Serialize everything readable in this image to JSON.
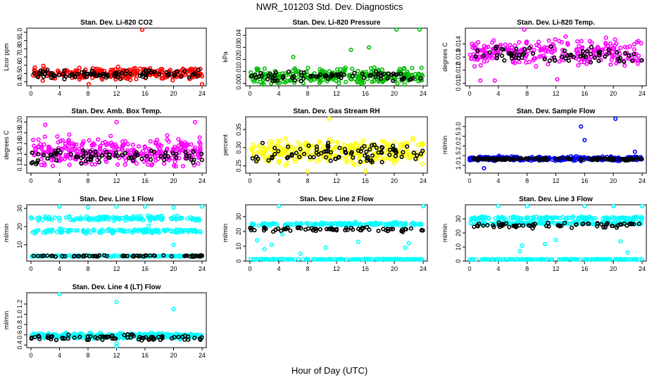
{
  "title": "NWR_101203  Std. Dev. Diagnostics",
  "xlabel": "Hour of Day (UTC)",
  "x_ticks": [
    "0",
    "4",
    "8",
    "12",
    "16",
    "20",
    "24"
  ],
  "chart_data": [
    {
      "type": "scatter",
      "title": "Stan. Dev. Li-820 CO2",
      "ylabel": "Licor ppm",
      "xlim": [
        0,
        24
      ],
      "ylim": [
        0.35,
        1.05
      ],
      "yticks": [
        "0.4",
        "0.5",
        "0.6",
        "0.7",
        "0.8",
        "0.9",
        "1.0"
      ],
      "ytick_values": [
        0.4,
        0.5,
        0.6,
        0.7,
        0.8,
        0.9,
        1.0
      ],
      "colors": {
        "main": "#ff0000",
        "black": "#000000"
      },
      "seed": 11,
      "main": {
        "n": 260,
        "base": 0.5,
        "spread": 0.05
      },
      "black": {
        "n": 90,
        "base": 0.49,
        "spread": 0.04
      },
      "outliers": [
        [
          15.6,
          1.03
        ],
        [
          24,
          0.37
        ],
        [
          8.1,
          0.37
        ]
      ]
    },
    {
      "type": "scatter",
      "title": "Stan. Dev. Li-820 Pressure",
      "ylabel": "kPa",
      "xlim": [
        0,
        24
      ],
      "ylim": [
        -0.002,
        0.046
      ],
      "yticks": [
        "0.00",
        "0.01",
        "0.02",
        "0.03",
        "0.04"
      ],
      "ytick_values": [
        0,
        0.01,
        0.02,
        0.03,
        0.04
      ],
      "colors": {
        "main": "#00bb00",
        "black": "#000000"
      },
      "seed": 23,
      "main": {
        "n": 260,
        "base": 0.006,
        "spread": 0.005
      },
      "black": {
        "n": 80,
        "base": 0.006,
        "spread": 0.003
      },
      "outliers": [
        [
          20.3,
          0.045
        ],
        [
          23.5,
          0.045
        ],
        [
          6,
          0.022
        ],
        [
          16.5,
          0.03
        ],
        [
          14,
          0.028
        ]
      ]
    },
    {
      "type": "scatter",
      "title": "Stan. Dev. Li-820 Temp.",
      "ylabel": "degrees C",
      "xlim": [
        0,
        24
      ],
      "ylim": [
        0.0108,
        0.0152
      ],
      "yticks": [
        "0.011",
        "0.012",
        "0.013",
        "0.014"
      ],
      "ytick_values": [
        0.011,
        0.012,
        0.013,
        0.014
      ],
      "colors": {
        "main": "#ff00ff",
        "black": "#000000"
      },
      "seed": 37,
      "main": {
        "n": 260,
        "base": 0.0133,
        "spread": 0.0007
      },
      "black": {
        "n": 70,
        "base": 0.0132,
        "spread": 0.0005
      },
      "outliers": [
        [
          1.5,
          0.0112
        ],
        [
          3.5,
          0.0112
        ],
        [
          7.6,
          0.0151
        ],
        [
          12.2,
          0.0113
        ]
      ]
    },
    {
      "type": "scatter",
      "title": "Stan. Dev. Amb. Box Temp.",
      "ylabel": "degrees C",
      "xlim": [
        0,
        24
      ],
      "ylim": [
        0.105,
        0.21
      ],
      "yticks": [
        "0.12",
        "0.14",
        "0.16",
        "0.18",
        "0.20"
      ],
      "ytick_values": [
        0.12,
        0.14,
        0.16,
        0.18,
        0.2
      ],
      "colors": {
        "main": "#ff00ff",
        "black": "#000000"
      },
      "seed": 41,
      "main": {
        "n": 320,
        "base": 0.145,
        "spread": 0.018
      },
      "black": {
        "n": 80,
        "base": 0.135,
        "spread": 0.01
      },
      "outliers": [
        [
          2,
          0.195
        ],
        [
          12,
          0.2
        ],
        [
          23,
          0.2
        ]
      ]
    },
    {
      "type": "scatter",
      "title": "Stan. Dev. Gas Stream RH",
      "ylabel": "percent",
      "xlim": [
        0,
        24
      ],
      "ylim": [
        0.23,
        0.385
      ],
      "yticks": [
        "0.25",
        "0.30",
        "0.35"
      ],
      "ytick_values": [
        0.25,
        0.3,
        0.35
      ],
      "colors": {
        "main": "#ffff00",
        "black": "#000000"
      },
      "seed": 53,
      "main": {
        "n": 300,
        "base": 0.29,
        "spread": 0.025
      },
      "black": {
        "n": 90,
        "base": 0.285,
        "spread": 0.02
      },
      "outliers": [
        [
          11,
          0.38
        ],
        [
          8,
          0.235
        ],
        [
          16,
          0.235
        ]
      ]
    },
    {
      "type": "scatter",
      "title": "Stan. Dev. Sample Flow",
      "ylabel": "ml/min",
      "xlim": [
        0,
        24
      ],
      "ylim": [
        0.6,
        3.5
      ],
      "yticks": [
        "1.0",
        "1.5",
        "2.0",
        "2.5",
        "3.0"
      ],
      "ytick_values": [
        1.0,
        1.5,
        2.0,
        2.5,
        3.0
      ],
      "colors": {
        "main": "#0000ff",
        "black": "#000000"
      },
      "seed": 67,
      "main": {
        "n": 300,
        "base": 1.35,
        "spread": 0.08
      },
      "black": {
        "n": 110,
        "base": 1.33,
        "spread": 0.05
      },
      "outliers": [
        [
          15.5,
          3.0
        ],
        [
          20.3,
          3.4
        ],
        [
          16,
          2.3
        ],
        [
          23,
          1.7
        ],
        [
          2,
          0.85
        ]
      ]
    },
    {
      "type": "scatter",
      "title": "Stan. Dev. Line 1 Flow",
      "ylabel": "ml/min",
      "xlim": [
        0,
        24
      ],
      "ylim": [
        1,
        32
      ],
      "yticks": [
        "10",
        "20",
        "30"
      ],
      "ytick_values": [
        10,
        20,
        30
      ],
      "colors": {
        "main": "#00ffff",
        "black": "#000000"
      },
      "seed": 71,
      "bands": [
        {
          "n": 140,
          "base": 24.5,
          "spread": 0.9,
          "color": "main"
        },
        {
          "n": 140,
          "base": 17.5,
          "spread": 0.9,
          "color": "main"
        },
        {
          "n": 140,
          "base": 3.8,
          "spread": 0.3,
          "color": "main"
        },
        {
          "n": 60,
          "base": 3.8,
          "spread": 0.3,
          "color": "black"
        }
      ],
      "outliers": [
        [
          4,
          31
        ],
        [
          8,
          30.5
        ],
        [
          12,
          31
        ],
        [
          16,
          31
        ],
        [
          20,
          30.5
        ],
        [
          24,
          31
        ],
        [
          20,
          10
        ],
        [
          16.5,
          20.5
        ]
      ]
    },
    {
      "type": "scatter",
      "title": "Stan. Dev. Line 2 Flow",
      "ylabel": "ml/min",
      "xlim": [
        0,
        24
      ],
      "ylim": [
        0,
        38
      ],
      "yticks": [
        "0",
        "10",
        "20",
        "30"
      ],
      "ytick_values": [
        0,
        10,
        20,
        30
      ],
      "colors": {
        "main": "#00ffff",
        "black": "#000000"
      },
      "seed": 83,
      "bands": [
        {
          "n": 150,
          "base": 25,
          "spread": 0.8,
          "color": "main"
        },
        {
          "n": 150,
          "base": 1.2,
          "spread": 0.2,
          "color": "main"
        },
        {
          "n": 70,
          "base": 21.5,
          "spread": 1.2,
          "color": "black"
        }
      ],
      "outliers": [
        [
          4,
          38
        ],
        [
          24,
          38
        ],
        [
          1,
          14
        ],
        [
          2,
          8
        ],
        [
          3,
          11
        ],
        [
          7,
          5
        ],
        [
          10.5,
          9
        ],
        [
          15,
          13
        ],
        [
          21.5,
          9
        ],
        [
          22,
          12
        ],
        [
          4.5,
          18
        ]
      ]
    },
    {
      "type": "scatter",
      "title": "Stan. Dev. Line 3 Flow",
      "ylabel": "ml/min",
      "xlim": [
        0,
        24
      ],
      "ylim": [
        0,
        40
      ],
      "yticks": [
        "0",
        "10",
        "20",
        "30"
      ],
      "ytick_values": [
        0,
        10,
        20,
        30
      ],
      "colors": {
        "main": "#00ffff",
        "black": "#000000"
      },
      "seed": 97,
      "bands": [
        {
          "n": 150,
          "base": 30.5,
          "spread": 0.8,
          "color": "main"
        },
        {
          "n": 150,
          "base": 26.8,
          "spread": 0.6,
          "color": "main"
        },
        {
          "n": 150,
          "base": 1.2,
          "spread": 0.2,
          "color": "main"
        },
        {
          "n": 70,
          "base": 25.5,
          "spread": 1.3,
          "color": "black"
        }
      ],
      "outliers": [
        [
          4,
          39
        ],
        [
          8,
          39
        ],
        [
          16,
          39
        ],
        [
          20,
          39
        ],
        [
          24,
          39
        ],
        [
          7,
          7
        ],
        [
          7.3,
          11
        ],
        [
          10.5,
          12
        ],
        [
          12,
          15
        ],
        [
          22,
          6
        ],
        [
          21,
          14
        ]
      ]
    },
    {
      "type": "scatter",
      "title": "Stan. Dev. Line 4 (LT) Flow",
      "ylabel": "ml/min",
      "xlim": [
        0,
        24
      ],
      "ylim": [
        0.35,
        1.42
      ],
      "yticks": [
        "0.4",
        "0.6",
        "0.8",
        "1.0",
        "1.2"
      ],
      "ytick_values": [
        0.4,
        0.6,
        0.8,
        1.0,
        1.2
      ],
      "colors": {
        "main": "#00ffff",
        "black": "#000000"
      },
      "seed": 101,
      "main": {
        "n": 300,
        "base": 0.58,
        "spread": 0.04
      },
      "black": {
        "n": 80,
        "base": 0.55,
        "spread": 0.04
      },
      "outliers": [
        [
          4,
          1.4
        ],
        [
          12,
          1.24
        ],
        [
          20,
          1.1
        ],
        [
          12,
          0.38
        ],
        [
          12,
          0.43
        ]
      ]
    }
  ]
}
